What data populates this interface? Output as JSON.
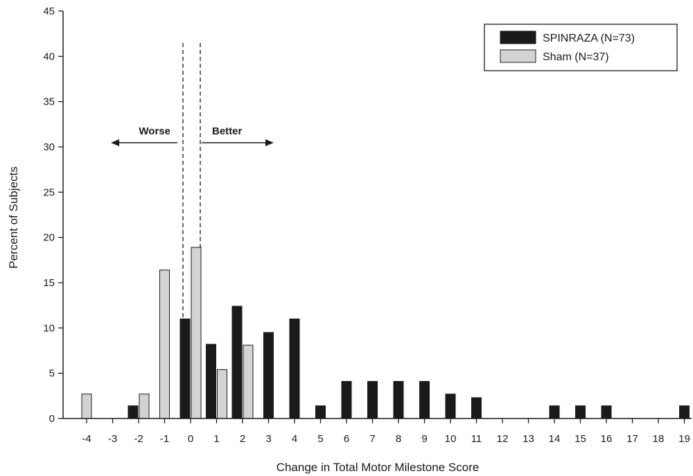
{
  "chart_data": {
    "type": "bar",
    "xlabel": "Change in Total Motor Milestone Score",
    "ylabel": "Percent of Subjects",
    "categories": [
      "-4",
      "-3",
      "-2",
      "-1",
      "0",
      "1",
      "2",
      "3",
      "4",
      "5",
      "6",
      "7",
      "8",
      "9",
      "10",
      "11",
      "12",
      "13",
      "14",
      "15",
      "16",
      "17",
      "18",
      "19"
    ],
    "ylim": [
      0,
      45
    ],
    "yticks": [
      "0",
      "5",
      "10",
      "15",
      "20",
      "25",
      "30",
      "35",
      "40",
      "45"
    ],
    "grid": false,
    "legend_position": "top-right",
    "series": [
      {
        "name": "SPINRAZA (N=73)",
        "color": "#1a1a1a",
        "values": [
          0,
          0,
          1.4,
          0,
          11.0,
          8.2,
          12.4,
          9.5,
          11.0,
          1.4,
          4.1,
          4.1,
          4.1,
          4.1,
          2.7,
          2.3,
          0,
          0,
          1.4,
          1.4,
          1.4,
          0,
          0,
          1.4
        ]
      },
      {
        "name": "Sham (N=37)",
        "color": "#d3d3d3",
        "values": [
          2.7,
          0,
          2.7,
          16.4,
          18.9,
          5.4,
          8.1,
          0,
          0,
          0,
          0,
          0,
          0,
          0,
          0,
          0,
          0,
          0,
          0,
          0,
          0,
          0,
          0,
          0
        ]
      }
    ],
    "annotations": {
      "worse": "Worse",
      "better": "Better"
    }
  }
}
